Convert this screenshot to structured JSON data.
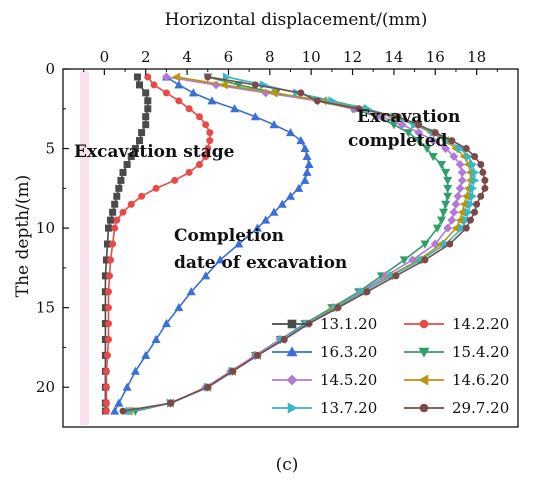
{
  "chart_data": {
    "type": "line",
    "title": "",
    "xlabel": "Horizontal displacement/(mm)",
    "ylabel": "The depth/(m)",
    "xlim": [
      -2,
      20
    ],
    "ylim": [
      0,
      22.5
    ],
    "y_inverted": true,
    "x_axis_position": "top",
    "x_ticks": [
      0,
      2,
      4,
      6,
      8,
      10,
      12,
      14,
      16,
      18
    ],
    "y_ticks": [
      0,
      5,
      10,
      15,
      20
    ],
    "grid": false,
    "legend_position": "bottom-right",
    "panel_label": "(c)",
    "annotations": [
      {
        "text": "Excavation stage"
      },
      {
        "text": "Excavation"
      },
      {
        "text": "completed"
      },
      {
        "text": "Completion"
      },
      {
        "text": "date of excavation"
      }
    ],
    "series": [
      {
        "name": "13.1.20",
        "color": "#4a4a4a",
        "marker": "square",
        "points": [
          [
            1.6,
            0.5
          ],
          [
            1.7,
            1
          ],
          [
            2,
            1.5
          ],
          [
            2.1,
            2
          ],
          [
            2.1,
            2.5
          ],
          [
            2,
            3
          ],
          [
            2,
            3.5
          ],
          [
            1.8,
            4
          ],
          [
            1.7,
            4.5
          ],
          [
            1.5,
            5
          ],
          [
            1.3,
            5.5
          ],
          [
            1.1,
            6
          ],
          [
            0.9,
            6.5
          ],
          [
            0.8,
            7
          ],
          [
            0.7,
            7.5
          ],
          [
            0.6,
            8
          ],
          [
            0.5,
            8.5
          ],
          [
            0.4,
            9
          ],
          [
            0.3,
            9.5
          ],
          [
            0.2,
            10
          ],
          [
            0.15,
            11
          ],
          [
            0.1,
            12
          ],
          [
            0.05,
            13
          ],
          [
            0.05,
            14
          ],
          [
            0.05,
            15
          ],
          [
            0.05,
            16
          ],
          [
            0.05,
            17
          ],
          [
            0.05,
            18
          ],
          [
            0.05,
            19
          ],
          [
            0.05,
            20
          ],
          [
            0.05,
            21
          ],
          [
            0.05,
            21.5
          ]
        ]
      },
      {
        "name": "14.2.20",
        "color": "#e84a4a",
        "marker": "circle",
        "points": [
          [
            2.1,
            0.5
          ],
          [
            2.4,
            1
          ],
          [
            3,
            1.5
          ],
          [
            3.6,
            2
          ],
          [
            4.1,
            2.5
          ],
          [
            4.6,
            3
          ],
          [
            4.9,
            3.5
          ],
          [
            5.1,
            4
          ],
          [
            5.1,
            4.5
          ],
          [
            5,
            5
          ],
          [
            4.9,
            5.5
          ],
          [
            4.6,
            6
          ],
          [
            4.1,
            6.5
          ],
          [
            3.4,
            7
          ],
          [
            2.5,
            7.5
          ],
          [
            1.8,
            8
          ],
          [
            1.3,
            8.5
          ],
          [
            0.9,
            9
          ],
          [
            0.6,
            9.5
          ],
          [
            0.5,
            10
          ],
          [
            0.4,
            11
          ],
          [
            0.3,
            12
          ],
          [
            0.25,
            13
          ],
          [
            0.2,
            14
          ],
          [
            0.2,
            15
          ],
          [
            0.2,
            16
          ],
          [
            0.2,
            17
          ],
          [
            0.15,
            18
          ],
          [
            0.1,
            19
          ],
          [
            0.1,
            20
          ],
          [
            0.1,
            21
          ],
          [
            0.1,
            21.5
          ]
        ]
      },
      {
        "name": "16.3.20",
        "color": "#3a6fd8",
        "marker": "triangle-up",
        "points": [
          [
            3,
            0.5
          ],
          [
            3.6,
            1
          ],
          [
            4.3,
            1.5
          ],
          [
            5.2,
            2
          ],
          [
            6.3,
            2.5
          ],
          [
            7.3,
            3
          ],
          [
            8.2,
            3.5
          ],
          [
            9,
            4
          ],
          [
            9.5,
            4.5
          ],
          [
            9.7,
            5
          ],
          [
            9.8,
            5.5
          ],
          [
            9.9,
            6
          ],
          [
            9.8,
            6.5
          ],
          [
            9.7,
            7
          ],
          [
            9.4,
            7.5
          ],
          [
            9,
            8
          ],
          [
            8.6,
            8.5
          ],
          [
            8.2,
            9
          ],
          [
            7.8,
            9.5
          ],
          [
            7.4,
            10
          ],
          [
            6.5,
            11
          ],
          [
            5.6,
            12
          ],
          [
            4.9,
            13
          ],
          [
            4.2,
            14
          ],
          [
            3.6,
            15
          ],
          [
            3,
            16
          ],
          [
            2.5,
            17
          ],
          [
            2,
            18
          ],
          [
            1.5,
            19
          ],
          [
            1.1,
            20
          ],
          [
            0.7,
            21
          ],
          [
            0.5,
            21.5
          ]
        ]
      },
      {
        "name": "15.4.20",
        "color": "#2e9e6b",
        "marker": "triangle-down",
        "points": [
          [
            5,
            0.5
          ],
          [
            6.5,
            1
          ],
          [
            8.3,
            1.5
          ],
          [
            10.3,
            2
          ],
          [
            12,
            2.5
          ],
          [
            13.2,
            3
          ],
          [
            14,
            3.5
          ],
          [
            14.7,
            4
          ],
          [
            15.2,
            4.5
          ],
          [
            15.6,
            5
          ],
          [
            15.9,
            5.5
          ],
          [
            16.3,
            6
          ],
          [
            16.5,
            6.5
          ],
          [
            16.6,
            7
          ],
          [
            16.6,
            7.5
          ],
          [
            16.6,
            8
          ],
          [
            16.5,
            8.5
          ],
          [
            16.4,
            9
          ],
          [
            16.3,
            9.5
          ],
          [
            16.1,
            10
          ],
          [
            15.5,
            11
          ],
          [
            14.5,
            12
          ],
          [
            13.4,
            13
          ],
          [
            12.3,
            14
          ],
          [
            11,
            15
          ],
          [
            9.7,
            16
          ],
          [
            8.5,
            17
          ],
          [
            7.3,
            18
          ],
          [
            6.2,
            19
          ],
          [
            5,
            20
          ],
          [
            3.2,
            21
          ],
          [
            1.5,
            21.5
          ]
        ]
      },
      {
        "name": "14.5.20",
        "color": "#b07ad8",
        "marker": "diamond",
        "points": [
          [
            3,
            0.5
          ],
          [
            5.4,
            1
          ],
          [
            7.8,
            1.5
          ],
          [
            10.3,
            2
          ],
          [
            12.1,
            2.5
          ],
          [
            13.4,
            3
          ],
          [
            14.4,
            3.5
          ],
          [
            15.2,
            4
          ],
          [
            15.9,
            4.5
          ],
          [
            16.5,
            5
          ],
          [
            16.9,
            5.5
          ],
          [
            17.2,
            6
          ],
          [
            17.3,
            6.5
          ],
          [
            17.3,
            7
          ],
          [
            17.2,
            7.5
          ],
          [
            17.1,
            8
          ],
          [
            17,
            8.5
          ],
          [
            16.9,
            9
          ],
          [
            16.8,
            9.5
          ],
          [
            16.6,
            10
          ],
          [
            16,
            11
          ],
          [
            14.9,
            12
          ],
          [
            13.6,
            13
          ],
          [
            12.4,
            14
          ],
          [
            11.1,
            15
          ],
          [
            9.8,
            16
          ],
          [
            8.5,
            17
          ],
          [
            7.3,
            18
          ],
          [
            6.1,
            19
          ],
          [
            4.9,
            20
          ],
          [
            3.2,
            21
          ],
          [
            1.2,
            21.5
          ]
        ]
      },
      {
        "name": "14.6.20",
        "color": "#b8960e",
        "marker": "triangle-left",
        "points": [
          [
            3.5,
            0.5
          ],
          [
            5.8,
            1
          ],
          [
            8.2,
            1.5
          ],
          [
            10.6,
            2
          ],
          [
            12.5,
            2.5
          ],
          [
            13.9,
            3
          ],
          [
            15,
            3.5
          ],
          [
            15.8,
            4
          ],
          [
            16.5,
            4.5
          ],
          [
            17,
            5
          ],
          [
            17.4,
            5.5
          ],
          [
            17.6,
            6
          ],
          [
            17.7,
            6.5
          ],
          [
            17.7,
            7
          ],
          [
            17.6,
            7.5
          ],
          [
            17.5,
            8
          ],
          [
            17.4,
            8.5
          ],
          [
            17.3,
            9
          ],
          [
            17.2,
            9.5
          ],
          [
            17,
            10
          ],
          [
            16.3,
            11
          ],
          [
            15.2,
            12
          ],
          [
            13.8,
            13
          ],
          [
            12.5,
            14
          ],
          [
            11.1,
            15
          ],
          [
            9.8,
            16
          ],
          [
            8.6,
            17
          ],
          [
            7.4,
            18
          ],
          [
            6.2,
            19
          ],
          [
            5,
            20
          ],
          [
            3.2,
            21
          ],
          [
            1.2,
            21.5
          ]
        ]
      },
      {
        "name": "13.7.20",
        "color": "#34b8c8",
        "marker": "triangle-right",
        "points": [
          [
            5.9,
            0.5
          ],
          [
            7.7,
            1
          ],
          [
            9.3,
            1.5
          ],
          [
            11,
            2
          ],
          [
            12.7,
            2.5
          ],
          [
            14,
            3
          ],
          [
            15,
            3.5
          ],
          [
            15.9,
            4
          ],
          [
            16.6,
            4.5
          ],
          [
            17.2,
            5
          ],
          [
            17.6,
            5.5
          ],
          [
            17.8,
            6
          ],
          [
            17.9,
            6.5
          ],
          [
            17.9,
            7
          ],
          [
            17.8,
            7.5
          ],
          [
            17.8,
            8
          ],
          [
            17.7,
            8.5
          ],
          [
            17.6,
            9
          ],
          [
            17.5,
            9.5
          ],
          [
            17.3,
            10
          ],
          [
            16.5,
            11
          ],
          [
            15.3,
            12
          ],
          [
            13.9,
            13
          ],
          [
            12.5,
            14
          ],
          [
            11.2,
            15
          ],
          [
            9.8,
            16
          ],
          [
            8.6,
            17
          ],
          [
            7.4,
            18
          ],
          [
            6.2,
            19
          ],
          [
            5,
            20
          ],
          [
            3.2,
            21
          ],
          [
            1.2,
            21.5
          ]
        ]
      },
      {
        "name": "29.7.20",
        "color": "#7a4a4a",
        "marker": "circle",
        "points": [
          [
            5,
            0.5
          ],
          [
            7.3,
            1
          ],
          [
            9.5,
            1.5
          ],
          [
            10.3,
            2
          ],
          [
            12.3,
            2.5
          ],
          [
            14.2,
            3
          ],
          [
            15.2,
            3.5
          ],
          [
            16,
            4
          ],
          [
            16.8,
            4.5
          ],
          [
            17.5,
            5
          ],
          [
            17.9,
            5.5
          ],
          [
            18.2,
            6
          ],
          [
            18.3,
            6.5
          ],
          [
            18.4,
            7
          ],
          [
            18.4,
            7.5
          ],
          [
            18.2,
            8
          ],
          [
            18,
            8.5
          ],
          [
            17.9,
            9
          ],
          [
            17.7,
            9.5
          ],
          [
            17.5,
            10
          ],
          [
            16.7,
            11
          ],
          [
            15.5,
            12
          ],
          [
            14.1,
            13
          ],
          [
            12.7,
            14
          ],
          [
            11.3,
            15
          ],
          [
            9.9,
            16
          ],
          [
            8.7,
            17
          ],
          [
            7.4,
            18
          ],
          [
            6.2,
            19
          ],
          [
            5,
            20
          ],
          [
            3.2,
            21
          ],
          [
            0.9,
            21.5
          ]
        ]
      }
    ]
  }
}
